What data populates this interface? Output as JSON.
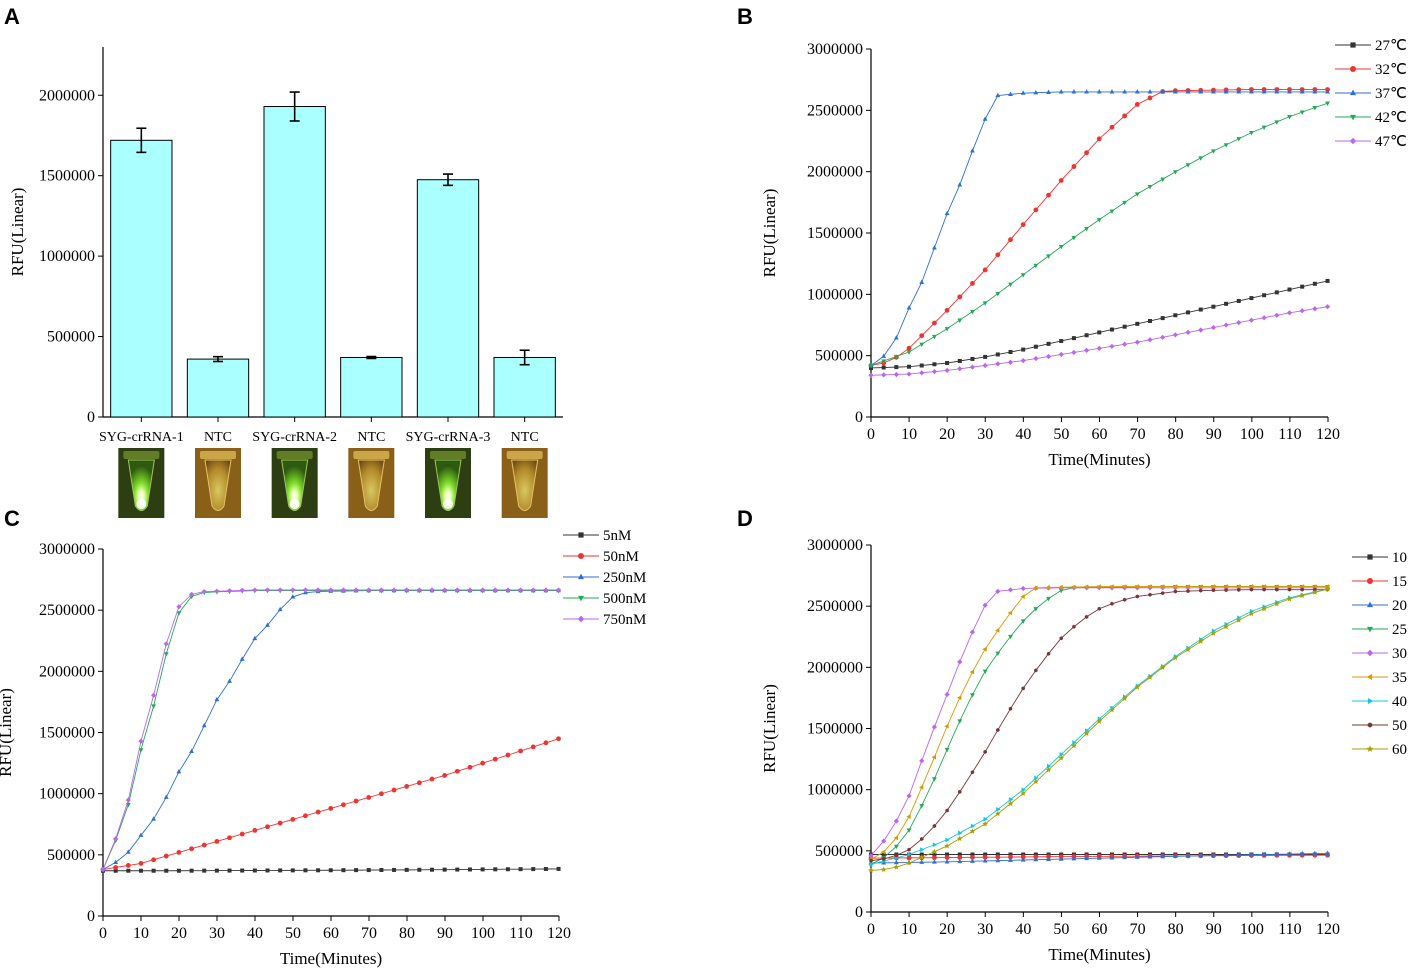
{
  "panels": {
    "A": {
      "letter": "A"
    },
    "B": {
      "letter": "B"
    },
    "C": {
      "letter": "C"
    },
    "D": {
      "letter": "D"
    }
  },
  "chart_data": [
    {
      "id": "A",
      "type": "bar",
      "categories": [
        "SYG-crRNA-1",
        "NTC",
        "SYG-crRNA-2",
        "NTC",
        "SYG-crRNA-3",
        "NTC"
      ],
      "values": [
        1720000,
        360000,
        1930000,
        370000,
        1475000,
        370000
      ],
      "errors": [
        75000,
        15000,
        90000,
        6000,
        35000,
        45000
      ],
      "bar_color": "#aaffff",
      "xlabel": "",
      "ylabel": "RFU(Linear)",
      "ylim": [
        0,
        2300000
      ],
      "yticks": [
        0,
        500000,
        1000000,
        1500000,
        2000000
      ],
      "tick_labels": [
        "0",
        "500000",
        "1000000",
        "1500000",
        "2000000"
      ],
      "tube_images": [
        "bright-green",
        "dim-orange",
        "bright-green",
        "dim-orange",
        "bright-green",
        "dim-orange"
      ]
    },
    {
      "id": "B",
      "type": "line",
      "xlabel": "Time(Minutes)",
      "ylabel": "RFU(Linear)",
      "xlim": [
        0,
        120
      ],
      "ylim": [
        0,
        3000000
      ],
      "xticks": [
        0,
        10,
        20,
        30,
        40,
        50,
        60,
        70,
        80,
        90,
        100,
        110,
        120
      ],
      "xtick_labels": [
        "0",
        "10",
        "20",
        "30",
        "40",
        "50",
        "60",
        "70",
        "80",
        "90",
        "100",
        "110",
        "120"
      ],
      "yticks": [
        0,
        500000,
        1000000,
        1500000,
        2000000,
        2500000,
        3000000
      ],
      "ytick_labels": [
        "0",
        "500000",
        "1000000",
        "1500000",
        "2000000",
        "2500000",
        "3000000"
      ],
      "legend_position": "top-right",
      "series": [
        {
          "name": "27℃",
          "color": "#333333",
          "marker": "square",
          "x": [
            0,
            10,
            20,
            30,
            40,
            50,
            60,
            70,
            80,
            90,
            100,
            110,
            120
          ],
          "y": [
            400000,
            410000,
            440000,
            490000,
            550000,
            620000,
            690000,
            760000,
            830000,
            900000,
            970000,
            1040000,
            1110000
          ]
        },
        {
          "name": "32℃",
          "color": "#ee3333",
          "marker": "circle",
          "x": [
            0,
            5,
            10,
            20,
            30,
            40,
            50,
            60,
            70,
            77,
            80,
            90,
            100,
            110,
            120
          ],
          "y": [
            420000,
            450000,
            560000,
            870000,
            1200000,
            1570000,
            1930000,
            2270000,
            2550000,
            2660000,
            2660000,
            2665000,
            2670000,
            2670000,
            2670000
          ]
        },
        {
          "name": "37℃",
          "color": "#2e6fd6",
          "marker": "triangle-up",
          "x": [
            0,
            3,
            7,
            10,
            14,
            17,
            20,
            24,
            27,
            30,
            33,
            40,
            50,
            60,
            70,
            80,
            90,
            100,
            110,
            120
          ],
          "y": [
            420000,
            480000,
            660000,
            890000,
            1140000,
            1410000,
            1660000,
            1940000,
            2200000,
            2430000,
            2620000,
            2640000,
            2650000,
            2650000,
            2650000,
            2650000,
            2650000,
            2650000,
            2650000,
            2650000
          ]
        },
        {
          "name": "42℃",
          "color": "#22aa55",
          "marker": "triangle-down",
          "x": [
            0,
            10,
            20,
            30,
            40,
            50,
            60,
            70,
            80,
            90,
            100,
            110,
            120
          ],
          "y": [
            420000,
            530000,
            720000,
            930000,
            1160000,
            1390000,
            1610000,
            1820000,
            2000000,
            2170000,
            2320000,
            2450000,
            2560000
          ]
        },
        {
          "name": "47℃",
          "color": "#bb66ee",
          "marker": "diamond",
          "x": [
            0,
            10,
            20,
            30,
            40,
            50,
            60,
            70,
            80,
            90,
            100,
            110,
            120
          ],
          "y": [
            340000,
            350000,
            380000,
            420000,
            460000,
            510000,
            560000,
            610000,
            670000,
            730000,
            790000,
            850000,
            900000
          ]
        }
      ]
    },
    {
      "id": "C",
      "type": "line",
      "xlabel": "Time(Minutes)",
      "ylabel": "RFU(Linear)",
      "xlim": [
        0,
        120
      ],
      "ylim": [
        0,
        3000000
      ],
      "xticks": [
        0,
        10,
        20,
        30,
        40,
        50,
        60,
        70,
        80,
        90,
        100,
        110,
        120
      ],
      "xtick_labels": [
        "0",
        "10",
        "20",
        "30",
        "40",
        "50",
        "60",
        "70",
        "80",
        "90",
        "100",
        "110",
        "120"
      ],
      "yticks": [
        0,
        500000,
        1000000,
        1500000,
        2000000,
        2500000,
        3000000
      ],
      "ytick_labels": [
        "0",
        "500000",
        "1000000",
        "1500000",
        "2000000",
        "2500000",
        "3000000"
      ],
      "legend_position": "top-right",
      "series": [
        {
          "name": "5nM",
          "color": "#333333",
          "marker": "square",
          "x": [
            0,
            20,
            40,
            60,
            80,
            100,
            120
          ],
          "y": [
            370000,
            370000,
            372000,
            374000,
            377000,
            381000,
            385000
          ]
        },
        {
          "name": "50nM",
          "color": "#ee3333",
          "marker": "circle",
          "x": [
            0,
            10,
            20,
            30,
            40,
            50,
            60,
            70,
            80,
            90,
            100,
            110,
            120
          ],
          "y": [
            380000,
            430000,
            520000,
            610000,
            700000,
            790000,
            880000,
            970000,
            1060000,
            1150000,
            1250000,
            1350000,
            1450000
          ]
        },
        {
          "name": "250nM",
          "color": "#2e6fd6",
          "marker": "triangle-up",
          "x": [
            0,
            3,
            7,
            10,
            14,
            17,
            20,
            24,
            27,
            30,
            34,
            37,
            40,
            44,
            47,
            50,
            54,
            60,
            70,
            80,
            90,
            100,
            110,
            120
          ],
          "y": [
            380000,
            430000,
            530000,
            660000,
            820000,
            990000,
            1180000,
            1380000,
            1580000,
            1770000,
            1950000,
            2120000,
            2270000,
            2400000,
            2520000,
            2610000,
            2650000,
            2655000,
            2660000,
            2660000,
            2660000,
            2660000,
            2660000,
            2660000
          ]
        },
        {
          "name": "500nM",
          "color": "#22aa55",
          "marker": "triangle-down",
          "x": [
            0,
            3,
            7,
            10,
            14,
            17,
            20,
            24,
            30,
            40,
            50,
            60,
            70,
            80,
            90,
            100,
            110,
            120
          ],
          "y": [
            380000,
            590000,
            940000,
            1360000,
            1790000,
            2190000,
            2480000,
            2640000,
            2650000,
            2660000,
            2660000,
            2660000,
            2660000,
            2660000,
            2660000,
            2660000,
            2660000,
            2660000
          ]
        },
        {
          "name": "750nM",
          "color": "#bb66ee",
          "marker": "diamond",
          "x": [
            0,
            3,
            7,
            10,
            14,
            17,
            20,
            24,
            30,
            40,
            50,
            60,
            70,
            80,
            90,
            100,
            110,
            120
          ],
          "y": [
            380000,
            600000,
            980000,
            1430000,
            1880000,
            2270000,
            2530000,
            2650000,
            2655000,
            2665000,
            2665000,
            2665000,
            2665000,
            2665000,
            2665000,
            2665000,
            2665000,
            2665000
          ]
        }
      ]
    },
    {
      "id": "D",
      "type": "line",
      "xlabel": "Time(Minutes)",
      "ylabel": "RFU(Linear)",
      "xlim": [
        0,
        120
      ],
      "ylim": [
        0,
        3000000
      ],
      "xticks": [
        0,
        10,
        20,
        30,
        40,
        50,
        60,
        70,
        80,
        90,
        100,
        110,
        120
      ],
      "xtick_labels": [
        "0",
        "10",
        "20",
        "30",
        "40",
        "50",
        "60",
        "70",
        "80",
        "90",
        "100",
        "110",
        "120"
      ],
      "yticks": [
        0,
        500000,
        1000000,
        1500000,
        2000000,
        2500000,
        3000000
      ],
      "ytick_labels": [
        "0",
        "500000",
        "1000000",
        "1500000",
        "2000000",
        "2500000",
        "3000000"
      ],
      "legend_position": "top-right",
      "series": [
        {
          "name": "10",
          "color": "#333333",
          "marker": "square",
          "x": [
            0,
            20,
            40,
            60,
            80,
            100,
            120
          ],
          "y": [
            470000,
            470000,
            470000,
            470000,
            470000,
            470000,
            470000
          ]
        },
        {
          "name": "15",
          "color": "#ee3333",
          "marker": "circle",
          "x": [
            0,
            20,
            40,
            60,
            80,
            100,
            120
          ],
          "y": [
            440000,
            445000,
            450000,
            455000,
            458000,
            462000,
            465000
          ]
        },
        {
          "name": "20",
          "color": "#2e6fd6",
          "marker": "triangle-up",
          "x": [
            0,
            20,
            40,
            60,
            80,
            100,
            120
          ],
          "y": [
            400000,
            410000,
            425000,
            440000,
            455000,
            468000,
            480000
          ]
        },
        {
          "name": "25",
          "color": "#22aa55",
          "marker": "triangle-down",
          "x": [
            0,
            5,
            10,
            15,
            20,
            25,
            30,
            35,
            40,
            45,
            50,
            53,
            60,
            80,
            100,
            120
          ],
          "y": [
            390000,
            470000,
            670000,
            970000,
            1330000,
            1680000,
            1970000,
            2190000,
            2380000,
            2530000,
            2630000,
            2650000,
            2655000,
            2660000,
            2660000,
            2660000
          ]
        },
        {
          "name": "30",
          "color": "#bb66ee",
          "marker": "diamond",
          "x": [
            0,
            5,
            10,
            15,
            20,
            25,
            30,
            33,
            40,
            50,
            60,
            80,
            100,
            120
          ],
          "y": [
            460000,
            640000,
            950000,
            1380000,
            1780000,
            2180000,
            2510000,
            2620000,
            2645000,
            2650000,
            2650000,
            2650000,
            2650000,
            2650000
          ]
        },
        {
          "name": "35",
          "color": "#d89a00",
          "marker": "triangle-left",
          "x": [
            0,
            5,
            10,
            15,
            20,
            25,
            30,
            35,
            40,
            43,
            50,
            60,
            80,
            100,
            120
          ],
          "y": [
            430000,
            520000,
            780000,
            1140000,
            1520000,
            1870000,
            2150000,
            2380000,
            2580000,
            2650000,
            2655000,
            2660000,
            2660000,
            2660000,
            2660000
          ]
        },
        {
          "name": "40",
          "color": "#11c8e0",
          "marker": "triangle-right",
          "x": [
            0,
            10,
            20,
            30,
            40,
            50,
            60,
            70,
            80,
            90,
            100,
            110,
            120
          ],
          "y": [
            390000,
            470000,
            590000,
            760000,
            1000000,
            1290000,
            1580000,
            1850000,
            2090000,
            2300000,
            2460000,
            2570000,
            2640000
          ]
        },
        {
          "name": "50",
          "color": "#7a3535",
          "marker": "hexagon",
          "x": [
            0,
            5,
            10,
            15,
            20,
            25,
            30,
            35,
            40,
            45,
            50,
            55,
            60,
            65,
            70,
            80,
            90,
            100,
            110,
            120
          ],
          "y": [
            420000,
            440000,
            510000,
            640000,
            830000,
            1060000,
            1310000,
            1580000,
            1830000,
            2050000,
            2240000,
            2380000,
            2480000,
            2540000,
            2580000,
            2620000,
            2630000,
            2635000,
            2635000,
            2635000
          ]
        },
        {
          "name": "60",
          "color": "#a9a000",
          "marker": "star",
          "x": [
            0,
            5,
            10,
            20,
            30,
            40,
            50,
            60,
            70,
            80,
            90,
            100,
            110,
            120
          ],
          "y": [
            340000,
            350000,
            400000,
            540000,
            720000,
            970000,
            1260000,
            1560000,
            1840000,
            2080000,
            2280000,
            2440000,
            2560000,
            2640000
          ]
        }
      ]
    }
  ]
}
